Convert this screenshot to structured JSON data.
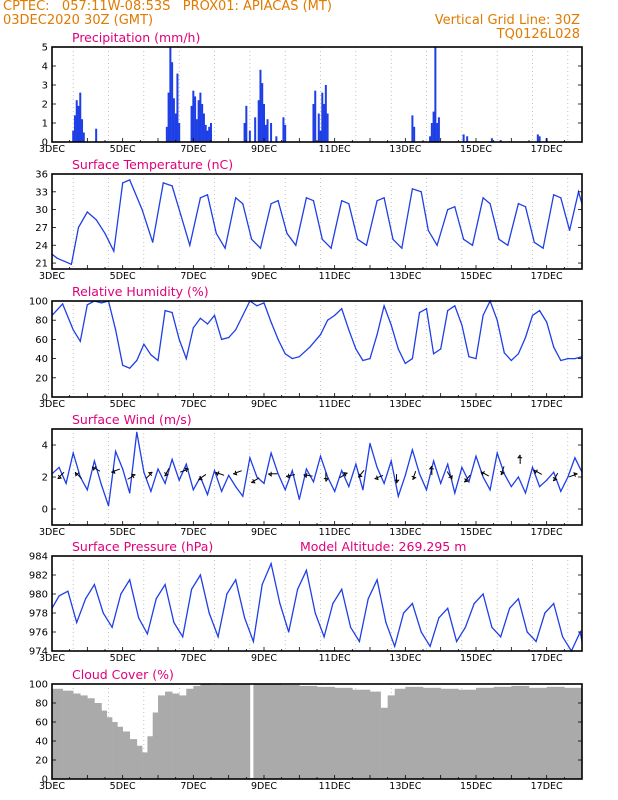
{
  "header": {
    "line1": "CPTEC:   057:11W-08:53S   PROX01: APIACAS (MT)",
    "line2_left": "03DEC2020 30Z (GMT)",
    "line2_right": "Vertical Grid Line: 30Z",
    "line3_right": "TQ0126L028",
    "model_altitude": "Model Altitude: 269.295 m"
  },
  "colors": {
    "header": "#e07a00",
    "title": "#e0007a",
    "series": "#1f3fe6",
    "bars": "#1f3fe6",
    "cloud": "#aaaaaa",
    "arrows": "#000000"
  },
  "chart_data": [
    {
      "id": "precip",
      "type": "bar",
      "title": "Precipitation (mm/h)",
      "x_ticks": [
        "3DEC",
        "5DEC",
        "7DEC",
        "9DEC",
        "11DEC",
        "13DEC",
        "15DEC",
        "17DEC"
      ],
      "ylim": [
        0,
        5
      ],
      "y_ticks": [
        "0",
        "1",
        "2",
        "3",
        "4",
        "5"
      ],
      "grid": "vertical dashed at 30Z",
      "x_days": [
        3.6,
        3.65,
        3.7,
        3.75,
        3.8,
        3.85,
        3.9,
        4.25,
        6.25,
        6.3,
        6.35,
        6.4,
        6.45,
        6.5,
        6.55,
        6.6,
        6.95,
        7.0,
        7.05,
        7.1,
        7.15,
        7.2,
        7.25,
        7.3,
        7.35,
        7.4,
        7.45,
        7.5,
        8.45,
        8.5,
        8.6,
        8.75,
        8.85,
        8.9,
        8.95,
        9.0,
        9.05,
        9.1,
        9.2,
        9.35,
        9.55,
        9.6,
        10.4,
        10.45,
        10.55,
        10.6,
        10.65,
        10.7,
        10.75,
        10.8,
        13.2,
        13.25,
        13.7,
        13.75,
        13.8,
        13.85,
        13.9,
        13.95,
        14.65,
        14.75,
        15.45,
        15.7,
        16.75,
        16.8,
        17.0
      ],
      "values": [
        0.6,
        1.4,
        2.2,
        1.9,
        2.6,
        1.2,
        0.5,
        0.7,
        0.8,
        2.6,
        5.0,
        4.2,
        2.3,
        1.5,
        3.6,
        1.0,
        1.9,
        2.7,
        2.4,
        1.2,
        2.2,
        2.6,
        2.0,
        1.5,
        0.9,
        0.6,
        0.8,
        1.0,
        1.0,
        1.9,
        0.6,
        1.3,
        2.2,
        3.8,
        3.1,
        2.0,
        0.9,
        1.2,
        1.0,
        0.3,
        1.3,
        0.9,
        2.0,
        2.7,
        1.5,
        0.6,
        2.6,
        2.0,
        3.0,
        1.5,
        1.4,
        0.8,
        0.3,
        1.0,
        1.6,
        5.0,
        1.0,
        1.3,
        0.4,
        0.3,
        0.2,
        0.1,
        0.4,
        0.3,
        0.2
      ]
    },
    {
      "id": "temp",
      "type": "line",
      "title": "Surface Temperature (nC)",
      "x_ticks": [
        "3DEC",
        "5DEC",
        "7DEC",
        "9DEC",
        "11DEC",
        "13DEC",
        "15DEC",
        "17DEC"
      ],
      "ylim": [
        20,
        36
      ],
      "y_ticks": [
        "21",
        "24",
        "27",
        "30",
        "33",
        "36"
      ],
      "x_days": [
        3.0,
        3.15,
        3.35,
        3.55,
        3.75,
        4.0,
        4.25,
        4.5,
        4.75,
        5.0,
        5.2,
        5.55,
        5.85,
        6.15,
        6.4,
        6.65,
        6.9,
        7.2,
        7.4,
        7.65,
        7.9,
        8.2,
        8.4,
        8.65,
        8.9,
        9.2,
        9.4,
        9.65,
        9.9,
        10.2,
        10.4,
        10.65,
        10.9,
        11.2,
        11.4,
        11.65,
        11.9,
        12.2,
        12.4,
        12.65,
        12.9,
        13.2,
        13.45,
        13.65,
        13.9,
        14.2,
        14.4,
        14.65,
        14.9,
        15.2,
        15.4,
        15.65,
        15.9,
        16.2,
        16.4,
        16.65,
        16.9,
        17.2,
        17.4,
        17.65,
        17.9,
        18.0
      ],
      "values": [
        22.5,
        21.8,
        21.3,
        20.8,
        27.0,
        29.6,
        28.3,
        26.0,
        23.0,
        34.5,
        35.0,
        30.0,
        24.5,
        34.5,
        34.0,
        29.0,
        24.0,
        32.0,
        32.5,
        26.0,
        23.5,
        32.0,
        31.0,
        25.0,
        23.5,
        31.0,
        31.5,
        26.0,
        24.0,
        32.0,
        31.5,
        25.0,
        23.5,
        31.5,
        31.0,
        25.0,
        24.0,
        31.5,
        32.0,
        25.0,
        23.5,
        33.5,
        33.0,
        26.5,
        24.0,
        30.0,
        30.5,
        25.0,
        24.0,
        32.0,
        31.0,
        25.0,
        24.0,
        31.0,
        30.5,
        24.5,
        23.5,
        32.5,
        32.0,
        26.5,
        33.0,
        31.0
      ]
    },
    {
      "id": "rh",
      "type": "line",
      "title": "Relative Humidity (%)",
      "x_ticks": [
        "3DEC",
        "5DEC",
        "7DEC",
        "9DEC",
        "11DEC",
        "13DEC",
        "15DEC",
        "17DEC"
      ],
      "ylim": [
        0,
        100
      ],
      "y_ticks": [
        "0",
        "20",
        "40",
        "60",
        "80",
        "100"
      ],
      "x_days": [
        3.0,
        3.3,
        3.6,
        3.8,
        4.0,
        4.2,
        4.4,
        4.6,
        4.8,
        5.0,
        5.2,
        5.4,
        5.6,
        5.8,
        6.0,
        6.2,
        6.4,
        6.6,
        6.8,
        7.0,
        7.2,
        7.4,
        7.6,
        7.8,
        8.0,
        8.2,
        8.4,
        8.6,
        8.8,
        9.0,
        9.2,
        9.4,
        9.6,
        9.8,
        10.0,
        10.3,
        10.6,
        10.8,
        11.0,
        11.2,
        11.4,
        11.6,
        11.8,
        12.0,
        12.2,
        12.4,
        12.6,
        12.8,
        13.0,
        13.2,
        13.4,
        13.6,
        13.8,
        14.0,
        14.2,
        14.4,
        14.6,
        14.8,
        15.0,
        15.2,
        15.4,
        15.6,
        15.8,
        16.0,
        16.2,
        16.4,
        16.6,
        16.8,
        17.0,
        17.2,
        17.4,
        17.6,
        17.8,
        18.0
      ],
      "values": [
        85,
        97,
        70,
        58,
        96,
        100,
        98,
        100,
        70,
        33,
        30,
        38,
        55,
        44,
        38,
        90,
        88,
        60,
        40,
        72,
        82,
        76,
        85,
        60,
        62,
        70,
        85,
        100,
        95,
        98,
        78,
        60,
        45,
        40,
        42,
        52,
        65,
        80,
        85,
        92,
        70,
        50,
        38,
        40,
        65,
        95,
        75,
        50,
        35,
        40,
        88,
        92,
        45,
        50,
        90,
        95,
        75,
        42,
        40,
        85,
        100,
        80,
        46,
        38,
        45,
        62,
        85,
        90,
        78,
        52,
        38,
        40,
        40,
        42
      ]
    },
    {
      "id": "wind",
      "type": "line",
      "title": "Surface Wind (m/s)",
      "x_ticks": [
        "3DEC",
        "5DEC",
        "7DEC",
        "9DEC",
        "11DEC",
        "13DEC",
        "15DEC",
        "17DEC"
      ],
      "ylim": [
        -1,
        5
      ],
      "y_ticks": [
        "0",
        "2",
        "4"
      ],
      "x_days": [
        3.0,
        3.2,
        3.4,
        3.6,
        3.8,
        4.0,
        4.2,
        4.4,
        4.6,
        4.8,
        5.0,
        5.2,
        5.4,
        5.6,
        5.8,
        6.0,
        6.2,
        6.4,
        6.6,
        6.8,
        7.0,
        7.2,
        7.4,
        7.6,
        7.8,
        8.0,
        8.2,
        8.4,
        8.6,
        8.8,
        9.0,
        9.2,
        9.4,
        9.6,
        9.8,
        10.0,
        10.2,
        10.4,
        10.6,
        10.8,
        11.0,
        11.2,
        11.4,
        11.6,
        11.8,
        12.0,
        12.2,
        12.4,
        12.6,
        12.8,
        13.0,
        13.2,
        13.4,
        13.6,
        13.8,
        14.0,
        14.2,
        14.4,
        14.6,
        14.8,
        15.0,
        15.2,
        15.4,
        15.6,
        15.8,
        16.0,
        16.2,
        16.4,
        16.6,
        16.8,
        17.0,
        17.2,
        17.4,
        17.6,
        17.8,
        18.0
      ],
      "values": [
        2.2,
        2.6,
        1.6,
        3.5,
        2.0,
        1.2,
        3.0,
        1.5,
        0.2,
        3.6,
        2.5,
        1.0,
        4.8,
        2.3,
        1.1,
        2.5,
        1.6,
        3.1,
        1.8,
        2.8,
        1.2,
        2.0,
        0.9,
        2.4,
        1.1,
        2.1,
        1.4,
        0.8,
        3.2,
        2.0,
        1.6,
        3.5,
        2.2,
        1.2,
        2.4,
        0.6,
        2.5,
        1.7,
        3.3,
        2.0,
        1.1,
        2.4,
        1.4,
        2.8,
        1.2,
        4.1,
        2.6,
        1.6,
        3.0,
        0.8,
        2.1,
        3.7,
        2.2,
        1.2,
        3.0,
        1.6,
        2.8,
        1.0,
        2.6,
        1.7,
        3.3,
        2.0,
        1.2,
        3.5,
        2.2,
        1.4,
        2.0,
        1.0,
        2.6,
        1.4,
        1.8,
        2.3,
        1.1,
        2.0,
        3.2,
        2.3
      ],
      "arrows": [
        {
          "x": 3.25,
          "y": 2.1,
          "deg": 225
        },
        {
          "x": 3.75,
          "y": 2.1,
          "deg": 135
        },
        {
          "x": 4.25,
          "y": 2.5,
          "deg": 150
        },
        {
          "x": 4.8,
          "y": 2.4,
          "deg": 200
        },
        {
          "x": 5.25,
          "y": 2.0,
          "deg": 30
        },
        {
          "x": 5.75,
          "y": 2.1,
          "deg": 45
        },
        {
          "x": 6.25,
          "y": 2.3,
          "deg": 240
        },
        {
          "x": 6.75,
          "y": 2.4,
          "deg": 20
        },
        {
          "x": 7.25,
          "y": 2.0,
          "deg": 215
        },
        {
          "x": 7.75,
          "y": 2.2,
          "deg": 160
        },
        {
          "x": 8.25,
          "y": 2.3,
          "deg": 200
        },
        {
          "x": 8.75,
          "y": 1.8,
          "deg": 210
        },
        {
          "x": 9.25,
          "y": 2.2,
          "deg": 180
        },
        {
          "x": 9.75,
          "y": 2.1,
          "deg": 190
        },
        {
          "x": 10.25,
          "y": 2.1,
          "deg": 170
        },
        {
          "x": 10.75,
          "y": 2.0,
          "deg": 270
        },
        {
          "x": 11.25,
          "y": 2.1,
          "deg": 30
        },
        {
          "x": 11.75,
          "y": 2.2,
          "deg": 230
        },
        {
          "x": 12.25,
          "y": 2.0,
          "deg": 200
        },
        {
          "x": 12.75,
          "y": 1.9,
          "deg": 270
        },
        {
          "x": 13.25,
          "y": 2.1,
          "deg": 250
        },
        {
          "x": 13.75,
          "y": 2.4,
          "deg": 90
        },
        {
          "x": 14.25,
          "y": 2.1,
          "deg": 300
        },
        {
          "x": 14.75,
          "y": 1.9,
          "deg": 230
        },
        {
          "x": 15.25,
          "y": 2.2,
          "deg": 150
        },
        {
          "x": 15.75,
          "y": 2.4,
          "deg": 250
        },
        {
          "x": 16.25,
          "y": 3.1,
          "deg": 90
        },
        {
          "x": 16.75,
          "y": 2.3,
          "deg": 150
        },
        {
          "x": 17.25,
          "y": 2.0,
          "deg": 240
        },
        {
          "x": 17.75,
          "y": 2.1,
          "deg": 20
        }
      ]
    },
    {
      "id": "pres",
      "type": "line",
      "title": "Surface Pressure (hPa)",
      "x_ticks": [
        "3DEC",
        "5DEC",
        "7DEC",
        "9DEC",
        "11DEC",
        "13DEC",
        "15DEC",
        "17DEC"
      ],
      "ylim": [
        974,
        984
      ],
      "y_ticks": [
        "974",
        "976",
        "978",
        "980",
        "982",
        "984"
      ],
      "x_days": [
        3.0,
        3.2,
        3.45,
        3.7,
        3.95,
        4.2,
        4.45,
        4.7,
        4.95,
        5.2,
        5.45,
        5.7,
        5.95,
        6.2,
        6.45,
        6.7,
        6.95,
        7.2,
        7.45,
        7.7,
        7.95,
        8.2,
        8.45,
        8.7,
        8.95,
        9.2,
        9.45,
        9.7,
        9.95,
        10.2,
        10.45,
        10.7,
        10.95,
        11.2,
        11.45,
        11.7,
        11.95,
        12.2,
        12.45,
        12.7,
        12.95,
        13.2,
        13.45,
        13.7,
        13.95,
        14.2,
        14.45,
        14.7,
        14.95,
        15.2,
        15.45,
        15.7,
        15.95,
        16.2,
        16.45,
        16.7,
        16.95,
        17.2,
        17.45,
        17.7,
        17.95,
        18.0
      ],
      "values": [
        978.5,
        979.8,
        980.3,
        977.0,
        979.5,
        981.0,
        978.0,
        976.5,
        980.0,
        981.5,
        977.5,
        975.8,
        979.5,
        981.0,
        977.0,
        975.5,
        980.5,
        982.0,
        978.0,
        975.5,
        980.0,
        981.5,
        977.5,
        975.0,
        981.0,
        983.2,
        979.0,
        976.0,
        980.5,
        982.5,
        978.0,
        975.5,
        979.0,
        980.5,
        976.5,
        975.0,
        979.5,
        981.5,
        977.0,
        974.5,
        978.0,
        979.0,
        976.0,
        974.5,
        977.5,
        978.5,
        975.0,
        976.5,
        979.0,
        980.0,
        976.5,
        975.5,
        978.5,
        979.5,
        976.0,
        975.0,
        978.0,
        979.0,
        975.5,
        974.0,
        976.0,
        975.0
      ]
    },
    {
      "id": "cloud",
      "type": "area",
      "title": "Cloud Cover (%)",
      "x_ticks": [
        "3DEC",
        "5DEC",
        "7DEC",
        "9DEC",
        "11DEC",
        "13DEC",
        "15DEC",
        "17DEC"
      ],
      "ylim": [
        0,
        100
      ],
      "y_ticks": [
        "0",
        "20",
        "40",
        "60",
        "80",
        "100"
      ],
      "x_days": [
        3.0,
        3.3,
        3.6,
        3.8,
        4.0,
        4.2,
        4.4,
        4.55,
        4.7,
        4.85,
        5.0,
        5.2,
        5.4,
        5.55,
        5.7,
        5.85,
        6.0,
        6.2,
        6.4,
        6.6,
        6.8,
        7.0,
        7.2,
        7.5,
        7.8,
        8.1,
        8.4,
        8.6,
        8.7,
        8.8,
        9.0,
        9.5,
        10.0,
        10.5,
        11.0,
        11.5,
        12.0,
        12.3,
        12.5,
        12.7,
        13.0,
        13.5,
        14.0,
        14.5,
        15.0,
        15.5,
        16.0,
        16.5,
        17.0,
        17.5,
        18.0
      ],
      "values": [
        95,
        93,
        90,
        88,
        85,
        80,
        72,
        65,
        60,
        55,
        50,
        42,
        35,
        28,
        45,
        70,
        88,
        92,
        90,
        88,
        95,
        98,
        100,
        99,
        100,
        100,
        100,
        1,
        100,
        100,
        100,
        99,
        98,
        97,
        96,
        94,
        92,
        75,
        88,
        95,
        97,
        96,
        95,
        94,
        96,
        97,
        98,
        96,
        97,
        96,
        95
      ]
    }
  ]
}
